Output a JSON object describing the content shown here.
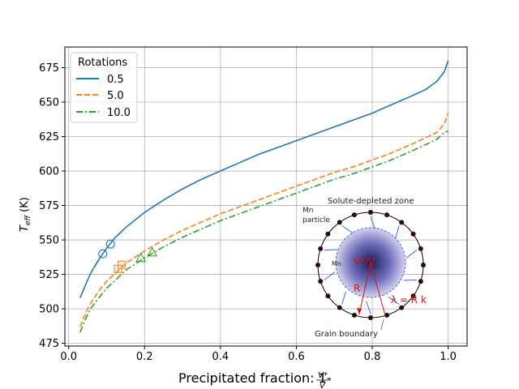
{
  "chart_data": {
    "type": "line",
    "title": "",
    "xlabel_main": "Precipitated fraction: 1-",
    "xlabel_frac_num": "V*",
    "xlabel_frac_den": "V",
    "ylabel_main": "T",
    "ylabel_sub": "eff",
    "ylabel_unit": " (K)",
    "xlim": [
      -0.01,
      1.05
    ],
    "ylim": [
      473,
      690
    ],
    "xticks": [
      0.0,
      0.2,
      0.4,
      0.6,
      0.8,
      1.0
    ],
    "xtick_labels": [
      "0.0",
      "0.2",
      "0.4",
      "0.6",
      "0.8",
      "1.0"
    ],
    "yticks": [
      475,
      500,
      525,
      550,
      575,
      600,
      625,
      650,
      675
    ],
    "ytick_labels": [
      "475",
      "500",
      "525",
      "550",
      "575",
      "600",
      "625",
      "650",
      "675"
    ],
    "grid": true,
    "legend": {
      "title": "Rotations",
      "location": "upper-left"
    },
    "series": [
      {
        "name": "0.5",
        "color": "#1f77b4",
        "style": "solid",
        "x": [
          0.03,
          0.05,
          0.06,
          0.08,
          0.1,
          0.12,
          0.15,
          0.2,
          0.25,
          0.3,
          0.35,
          0.4,
          0.45,
          0.5,
          0.55,
          0.6,
          0.65,
          0.7,
          0.75,
          0.8,
          0.85,
          0.9,
          0.94,
          0.97,
          0.99,
          1.0
        ],
        "y": [
          508,
          521,
          527,
          536,
          544,
          551,
          559,
          570,
          579,
          587,
          594,
          600,
          606,
          612,
          617,
          622,
          627,
          632,
          637,
          642,
          648,
          654,
          659,
          665,
          672,
          680
        ],
        "markers": {
          "symbol": "circle",
          "x": [
            0.09,
            0.11
          ],
          "y": [
            540,
            547
          ]
        }
      },
      {
        "name": "5.0",
        "color": "#ff7f0e",
        "style": "dashed",
        "x": [
          0.03,
          0.05,
          0.06,
          0.08,
          0.1,
          0.12,
          0.15,
          0.2,
          0.25,
          0.3,
          0.35,
          0.4,
          0.45,
          0.5,
          0.55,
          0.6,
          0.65,
          0.7,
          0.75,
          0.8,
          0.85,
          0.9,
          0.94,
          0.97,
          0.99,
          1.0
        ],
        "y": [
          487,
          500,
          505,
          513,
          520,
          525,
          533,
          542,
          550,
          557,
          563,
          569,
          574,
          579,
          584,
          589,
          594,
          599,
          603,
          608,
          613,
          619,
          624,
          628,
          634,
          642
        ],
        "markers": {
          "symbol": "square",
          "x": [
            0.13,
            0.14
          ],
          "y": [
            529,
            532
          ]
        }
      },
      {
        "name": "10.0",
        "color": "#2ca02c",
        "style": "dashdot",
        "x": [
          0.03,
          0.05,
          0.06,
          0.08,
          0.1,
          0.12,
          0.15,
          0.2,
          0.25,
          0.3,
          0.35,
          0.4,
          0.45,
          0.5,
          0.55,
          0.6,
          0.65,
          0.7,
          0.75,
          0.8,
          0.85,
          0.9,
          0.94,
          0.97,
          0.99,
          1.0
        ],
        "y": [
          483,
          496,
          501,
          508,
          515,
          520,
          528,
          537,
          545,
          552,
          558,
          564,
          569,
          574,
          579,
          584,
          589,
          594,
          598,
          603,
          608,
          614,
          619,
          623,
          628,
          629
        ],
        "markers": {
          "symbol": "triangle",
          "x": [
            0.19,
            0.22
          ],
          "y": [
            537,
            541
          ]
        }
      }
    ],
    "inset": {
      "description": "Schematic of a grain with Mn particles on the grain boundary and a solute-depleted zone",
      "labels": {
        "solute_zone": "Solute-depleted zone",
        "particle_l1": "Mn",
        "particle_l2": "particle",
        "mn_small": "Mn",
        "volume_ratio": "V*/V",
        "radius": "R",
        "lambda": "λ = R k",
        "grain_boundary": "Grain boundary"
      }
    }
  }
}
